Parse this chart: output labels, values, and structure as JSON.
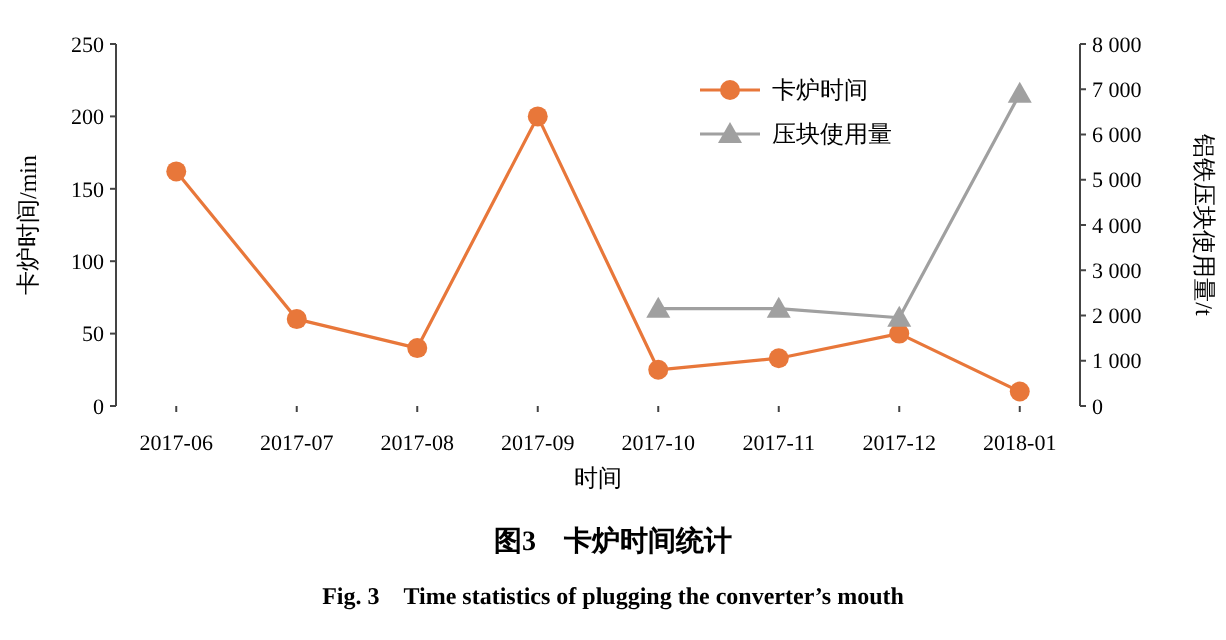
{
  "chart_data": {
    "type": "line",
    "title": "图3　卡炉时间统计",
    "subtitle": "Fig. 3　Time statistics of plugging the converter’s mouth",
    "xlabel": "时间",
    "ylabel": "卡炉时间/min",
    "y2label": "铝铁压块使用量/t",
    "categories": [
      "2017-06",
      "2017-07",
      "2017-08",
      "2017-09",
      "2017-10",
      "2017-11",
      "2017-12",
      "2018-01"
    ],
    "series": [
      {
        "name": "卡炉时间",
        "color": "#e8773a",
        "marker": "circle",
        "values": [
          162,
          60,
          40,
          200,
          25,
          33,
          50,
          10
        ]
      },
      {
        "name": "压块使用量",
        "color": "#a0a0a0",
        "marker": "triangle",
        "axis": "y2",
        "values": [
          null,
          null,
          null,
          null,
          2150,
          2150,
          1950,
          6900
        ]
      }
    ],
    "ylim": [
      0,
      250
    ],
    "yticks": [
      0,
      50,
      100,
      150,
      200,
      250
    ],
    "y2lim": [
      0,
      8000
    ],
    "y2ticks": [
      {
        "value": 0,
        "label": "0"
      },
      {
        "value": 1000,
        "label": "1 000"
      },
      {
        "value": 2000,
        "label": "2 000"
      },
      {
        "value": 3000,
        "label": "3 000"
      },
      {
        "value": 4000,
        "label": "4 000"
      },
      {
        "value": 5000,
        "label": "5 000"
      },
      {
        "value": 6000,
        "label": "6 000"
      },
      {
        "value": 7000,
        "label": "7 000"
      },
      {
        "value": 8000,
        "label": "8 000"
      }
    ],
    "grid": false,
    "legend": "top right"
  }
}
